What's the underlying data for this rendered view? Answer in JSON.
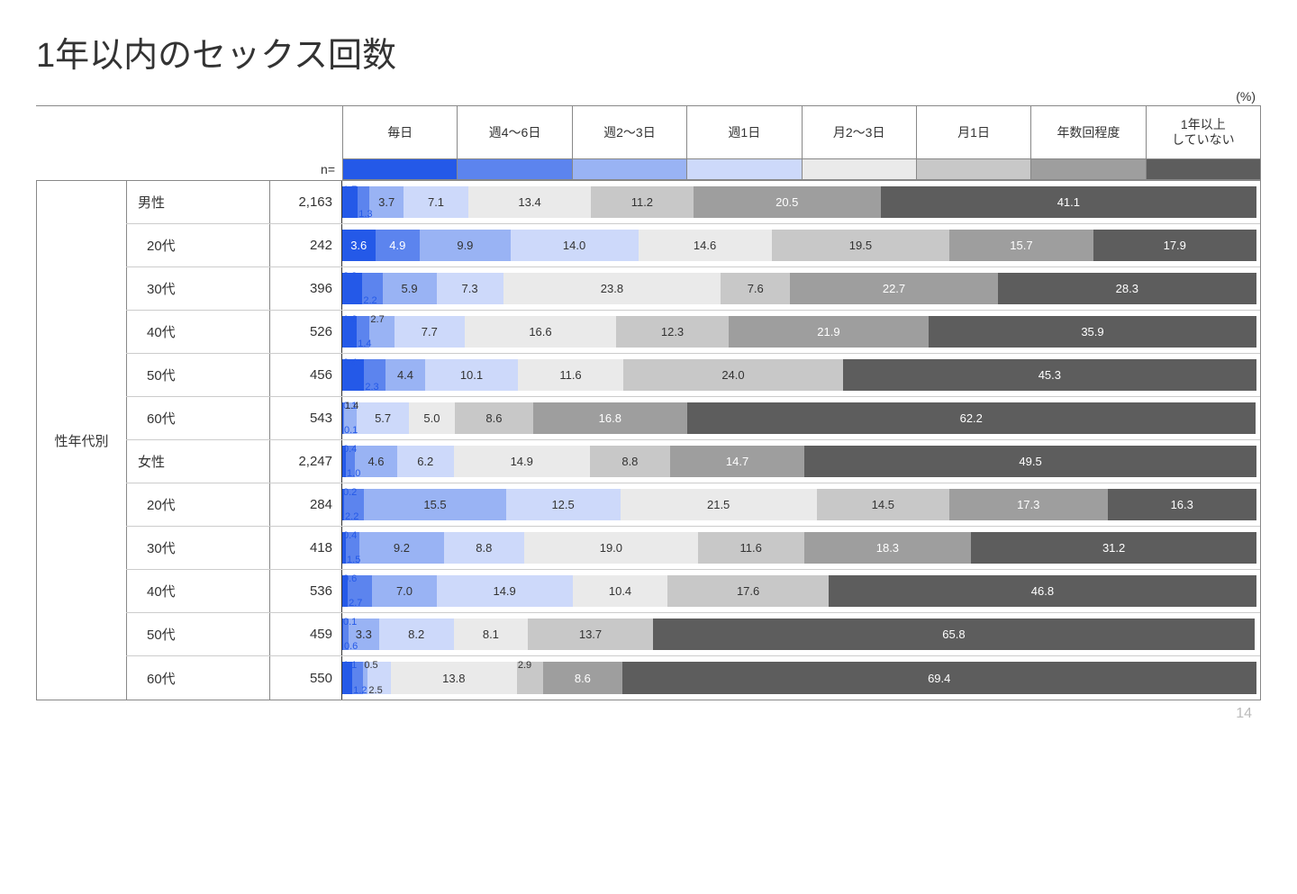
{
  "title": "1年以内のセックス回数",
  "percent_label": "(%)",
  "n_label": "n=",
  "side_label": "性年代別",
  "page_number": "14",
  "categories": [
    {
      "label": "毎日",
      "color": "#2459e8",
      "text": "#ffffff"
    },
    {
      "label": "週4～6日",
      "color": "#5c84ee",
      "text": "#ffffff"
    },
    {
      "label": "週2～3日",
      "color": "#99b3f4",
      "text": "#333333"
    },
    {
      "label": "週1日",
      "color": "#cdd9fa",
      "text": "#333333"
    },
    {
      "label": "月2～3日",
      "color": "#eaeaea",
      "text": "#333333"
    },
    {
      "label": "月1日",
      "color": "#c8c8c8",
      "text": "#333333"
    },
    {
      "label": "年数回程度",
      "color": "#9e9e9e",
      "text": "#ffffff"
    },
    {
      "label": "1年以上\nしていない",
      "color": "#5d5d5d",
      "text": "#ffffff"
    }
  ],
  "rows": [
    {
      "label": "男性",
      "n": "2,163",
      "values": [
        1.7,
        1.3,
        3.7,
        7.1,
        13.4,
        11.2,
        20.5,
        41.1
      ]
    },
    {
      "label": "20代",
      "n": "242",
      "values": [
        3.6,
        4.9,
        9.9,
        14.0,
        14.6,
        19.5,
        15.7,
        17.9
      ]
    },
    {
      "label": "30代",
      "n": "396",
      "values": [
        2.2,
        2.2,
        5.9,
        7.3,
        23.8,
        7.6,
        22.7,
        28.3
      ]
    },
    {
      "label": "40代",
      "n": "526",
      "values": [
        1.6,
        1.4,
        2.7,
        7.7,
        16.6,
        12.3,
        21.9,
        35.9
      ]
    },
    {
      "label": "50代",
      "n": "456",
      "values": [
        2.4,
        2.3,
        4.4,
        10.1,
        11.6,
        24.0,
        45.3,
        null
      ],
      "skip_last": true
    },
    {
      "label": "60代",
      "n": "543",
      "values": [
        0.1,
        0.1,
        1.4,
        5.7,
        5.0,
        8.6,
        16.8,
        62.2
      ]
    },
    {
      "label": "女性",
      "n": "2,247",
      "values": [
        0.4,
        1.0,
        4.6,
        6.2,
        14.9,
        8.8,
        14.7,
        49.5
      ]
    },
    {
      "label": "20代",
      "n": "284",
      "values": [
        0.2,
        2.2,
        15.5,
        12.5,
        21.5,
        14.5,
        17.3,
        16.3
      ]
    },
    {
      "label": "30代",
      "n": "418",
      "values": [
        0.4,
        1.5,
        9.2,
        8.8,
        19.0,
        11.6,
        18.3,
        31.2
      ]
    },
    {
      "label": "40代",
      "n": "536",
      "values": [
        0.6,
        2.7,
        7.0,
        14.9,
        10.4,
        17.6,
        46.8,
        null
      ],
      "skip_last": true
    },
    {
      "label": "50代",
      "n": "459",
      "values": [
        0.1,
        0.6,
        3.3,
        8.2,
        8.1,
        13.7,
        65.8,
        null
      ],
      "skip_last": true
    },
    {
      "label": "60代",
      "n": "550",
      "values": [
        1.1,
        1.2,
        0.5,
        2.5,
        13.8,
        2.9,
        8.6,
        69.4
      ]
    }
  ],
  "tiny_threshold": 3.0,
  "label_fontsize": 13
}
